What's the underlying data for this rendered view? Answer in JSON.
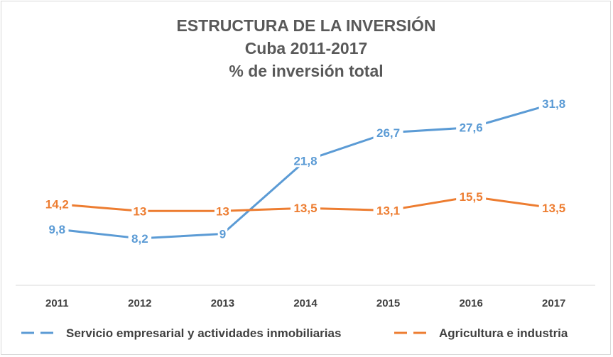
{
  "chart_data": {
    "type": "line",
    "title_lines": [
      "ESTRUCTURA DE LA INVERSIÓN",
      "Cuba 2011-2017",
      "% de inversión total"
    ],
    "categories": [
      "2011",
      "2012",
      "2013",
      "2014",
      "2015",
      "2016",
      "2017"
    ],
    "series": [
      {
        "name": "Servicio empresarial y actividades inmobiliarias",
        "color": "#5b9bd5",
        "values": [
          9.8,
          8.2,
          9,
          21.8,
          26.7,
          27.6,
          31.8
        ],
        "labels": [
          "9,8",
          "8,2",
          "9",
          "21,8",
          "26,7",
          "27,6",
          "31,8"
        ]
      },
      {
        "name": "Agricultura e industria",
        "color": "#ed7d31",
        "values": [
          14.2,
          13,
          13,
          13.5,
          13.1,
          15.5,
          13.5
        ],
        "labels": [
          "14,2",
          "13",
          "13",
          "13,5",
          "13,1",
          "15,5",
          "13,5"
        ]
      }
    ],
    "ylim": [
      0,
      35
    ],
    "grid": false,
    "legend": "bottom",
    "xlabel": "",
    "ylabel": ""
  }
}
